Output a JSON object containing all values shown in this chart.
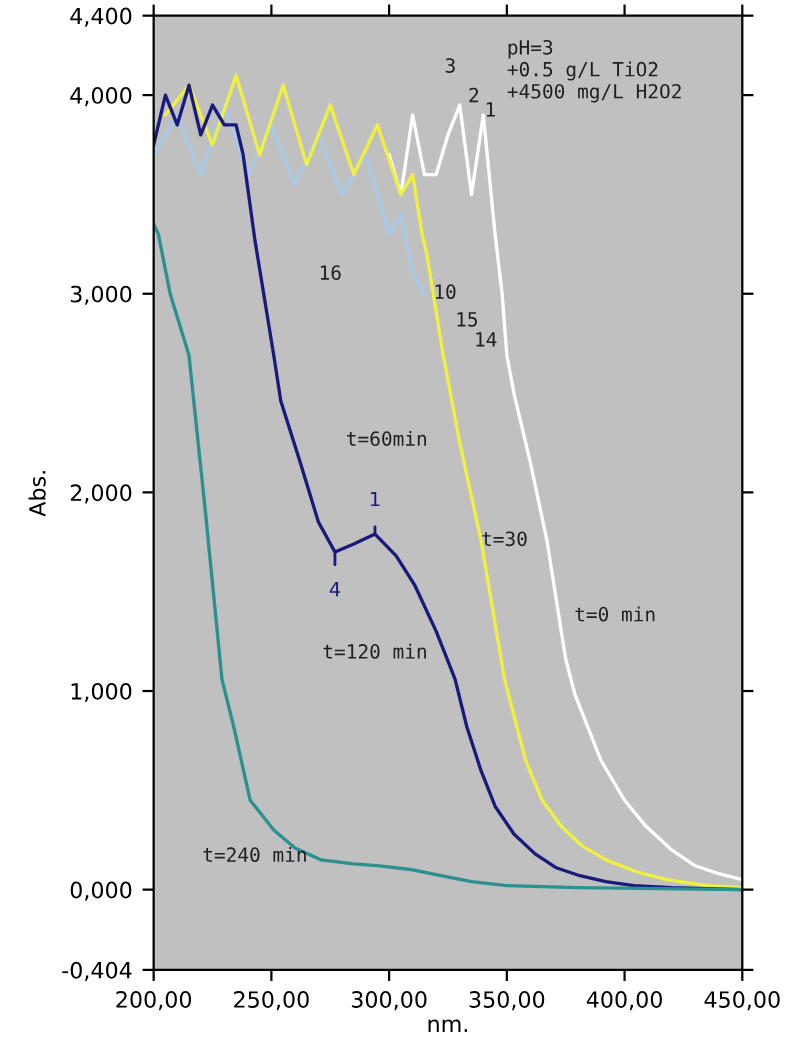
{
  "chart_data": {
    "type": "line",
    "xlabel": "nm.",
    "ylabel": "Abs.",
    "xlim": [
      200,
      450
    ],
    "ylim": [
      -0.404,
      4.4
    ],
    "xticks": [
      {
        "value": 200,
        "label": "200,00"
      },
      {
        "value": 250,
        "label": "250,00"
      },
      {
        "value": 300,
        "label": "300,00"
      },
      {
        "value": 350,
        "label": "350,00"
      },
      {
        "value": 400,
        "label": "400,00"
      },
      {
        "value": 450,
        "label": "450,00"
      }
    ],
    "yticks": [
      {
        "value": -0.404,
        "label": "-0,404"
      },
      {
        "value": 0,
        "label": "0,000"
      },
      {
        "value": 1,
        "label": "1,000"
      },
      {
        "value": 2,
        "label": "2,000"
      },
      {
        "value": 3,
        "label": "3,000"
      },
      {
        "value": 4,
        "label": "4,000"
      },
      {
        "value": 4.4,
        "label": "4,400"
      }
    ],
    "grid": false,
    "legend": false,
    "marker": "none",
    "line_style": "solid",
    "series": [
      {
        "color": "#ffffff",
        "x": [
          300,
          305,
          310,
          315,
          320,
          325,
          330,
          335,
          340,
          345,
          348,
          350,
          353,
          360,
          367,
          375,
          379,
          390,
          400,
          409,
          420,
          430,
          440,
          450
        ],
        "values": [
          3.7,
          3.5,
          3.9,
          3.6,
          3.6,
          3.8,
          3.95,
          3.5,
          3.9,
          3.3,
          3.0,
          2.69,
          2.5,
          2.15,
          1.76,
          1.16,
          0.98,
          0.65,
          0.45,
          0.32,
          0.2,
          0.12,
          0.08,
          0.05
        ]
      },
      {
        "color": "#a8c8e8",
        "x": [
          200,
          210,
          220,
          230,
          240,
          250,
          260,
          270,
          280,
          290,
          300,
          305,
          310,
          315
        ],
        "values": [
          3.7,
          3.9,
          3.6,
          3.95,
          3.6,
          3.85,
          3.55,
          3.8,
          3.5,
          3.7,
          3.3,
          3.4,
          3.1,
          3.0
        ]
      },
      {
        "color": "#f0f040",
        "x": [
          205,
          215,
          225,
          235,
          245,
          255,
          265,
          275,
          285,
          295,
          305,
          310,
          314,
          316,
          323,
          330,
          339,
          349,
          358,
          365,
          373,
          382,
          392,
          405,
          418,
          435,
          450
        ],
        "values": [
          3.9,
          4.05,
          3.75,
          4.1,
          3.7,
          4.05,
          3.65,
          3.95,
          3.6,
          3.85,
          3.5,
          3.6,
          3.3,
          3.2,
          2.69,
          2.25,
          1.76,
          1.06,
          0.65,
          0.45,
          0.32,
          0.22,
          0.15,
          0.09,
          0.05,
          0.02,
          0.01
        ]
      },
      {
        "color": "#1a1a7a",
        "x": [
          200,
          205,
          210,
          215,
          220,
          225,
          230,
          235,
          238,
          243,
          251,
          254,
          262,
          270,
          277,
          285,
          294,
          303,
          311,
          320,
          328,
          333,
          339,
          345,
          353,
          362,
          371,
          381,
          392,
          404,
          420,
          450
        ],
        "values": [
          3.75,
          4.0,
          3.85,
          4.05,
          3.8,
          3.95,
          3.85,
          3.85,
          3.7,
          3.27,
          2.69,
          2.46,
          2.16,
          1.85,
          1.7,
          1.74,
          1.79,
          1.68,
          1.53,
          1.3,
          1.06,
          0.82,
          0.6,
          0.42,
          0.28,
          0.18,
          0.11,
          0.07,
          0.04,
          0.02,
          0.01,
          0
        ]
      },
      {
        "color": "#2a9090",
        "x": [
          200,
          202,
          207,
          215,
          222,
          229,
          234,
          241,
          251,
          260,
          271,
          285,
          296,
          310,
          322,
          335,
          350,
          380,
          450
        ],
        "values": [
          3.35,
          3.3,
          3.0,
          2.69,
          1.9,
          1.06,
          0.82,
          0.45,
          0.3,
          0.21,
          0.15,
          0.13,
          0.12,
          0.1,
          0.07,
          0.04,
          0.02,
          0.01,
          0
        ]
      }
    ],
    "annotations": [
      "pH=3\n+0.5 g/L TiO2\n+4500 mg/L H2O2",
      "t=60min",
      "t=30",
      "t=0 min",
      "t=120 min",
      "t=240 min",
      {
        "text": "4",
        "x": 277,
        "y": 1.7
      },
      {
        "text": "1",
        "x": 294,
        "y": 1.79
      },
      "3",
      "2",
      "1",
      "15",
      "14",
      "16",
      "10"
    ]
  }
}
